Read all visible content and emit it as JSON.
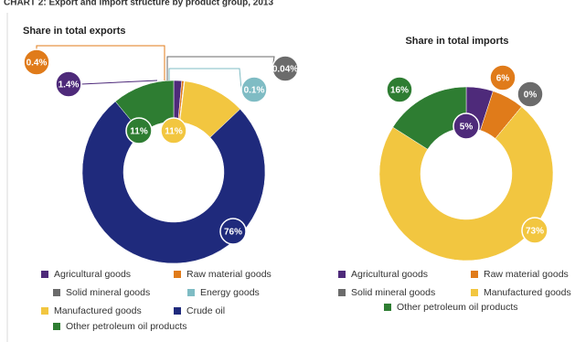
{
  "caption": "CHART 2: Export and import structure by product group, 2013",
  "chart_data": [
    {
      "type": "donut",
      "title": "Share in total exports",
      "categories": [
        "Agricultural goods",
        "Raw material goods",
        "Solid mineral goods",
        "Energy goods",
        "Manufactured goods",
        "Crude oil",
        "Other petroleum oil products"
      ],
      "values": [
        1.4,
        0.4,
        0.04,
        0.1,
        11,
        76,
        11
      ],
      "value_labels": [
        "1.4%",
        "0.4%",
        "0.04%",
        "0.1%",
        "11%",
        "76%",
        "11%"
      ],
      "colors": [
        "#4e2a7a",
        "#e07b1a",
        "#6b6b6b",
        "#7fbcc4",
        "#f2c640",
        "#1f2a7c",
        "#2e7d32"
      ]
    },
    {
      "type": "donut",
      "title": "Share in total imports",
      "categories": [
        "Agricultural goods",
        "Raw material goods",
        "Solid mineral goods",
        "Manufactured goods",
        "Other petroleum oil products"
      ],
      "values": [
        5,
        6,
        0,
        73,
        16
      ],
      "value_labels": [
        "5%",
        "6%",
        "0%",
        "73%",
        "16%"
      ],
      "colors": [
        "#4e2a7a",
        "#e07b1a",
        "#6b6b6b",
        "#f2c640",
        "#2e7d32"
      ]
    }
  ]
}
